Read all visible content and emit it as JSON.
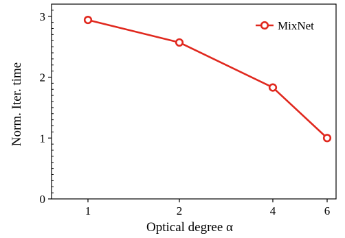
{
  "chart_data": {
    "type": "line",
    "categories": [
      "1",
      "2",
      "4",
      "6"
    ],
    "series": [
      {
        "name": "MixNet",
        "values": [
          2.94,
          2.57,
          1.83,
          1.0
        ],
        "color": "#e0281e"
      }
    ],
    "xlabel": "Optical degree α",
    "ylabel": "Norm. Iter. time",
    "ylim": [
      0,
      3.2
    ],
    "yticks": [
      0,
      1,
      2,
      3
    ],
    "grid": false,
    "legend": "top-right",
    "marker": "open-circle"
  }
}
